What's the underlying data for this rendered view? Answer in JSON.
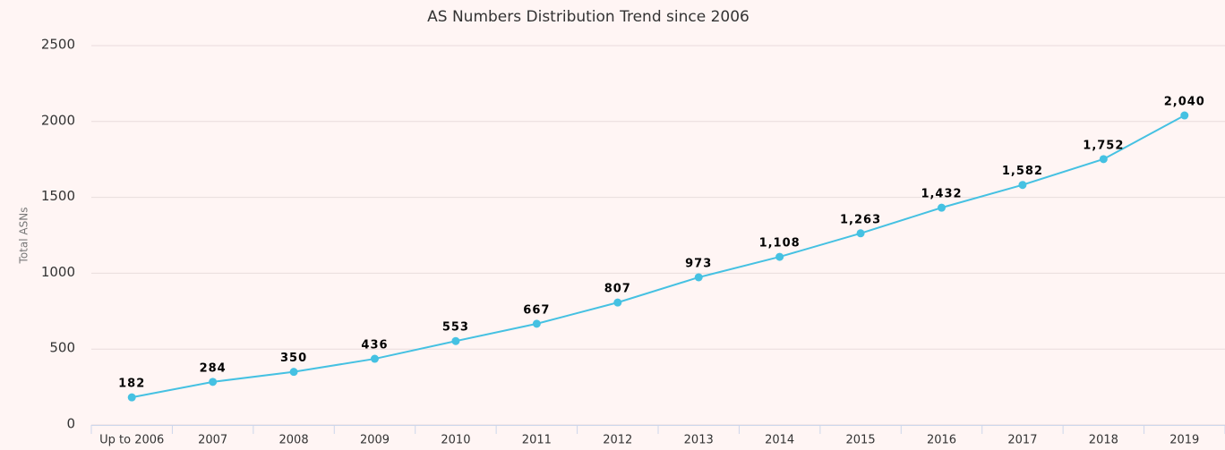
{
  "chart_data": {
    "type": "line",
    "title": "AS Numbers Distribution Trend since 2006",
    "y_label": "Total ASNs",
    "categories": [
      "Up to 2006",
      "2007",
      "2008",
      "2009",
      "2010",
      "2011",
      "2012",
      "2013",
      "2014",
      "2015",
      "2016",
      "2017",
      "2018",
      "2019"
    ],
    "values": [
      182,
      284,
      350,
      436,
      553,
      667,
      807,
      973,
      1108,
      1263,
      1432,
      1582,
      1752,
      2040
    ],
    "value_labels": [
      "182",
      "284",
      "350",
      "436",
      "553",
      "667",
      "807",
      "973",
      "1,108",
      "1,263",
      "1,432",
      "1,582",
      "1,752",
      "2,040"
    ],
    "color": "#45c1e2",
    "ylim": [
      0,
      2500
    ],
    "yticks": [
      0,
      500,
      1000,
      1500,
      2000,
      2500
    ],
    "grid": true
  }
}
